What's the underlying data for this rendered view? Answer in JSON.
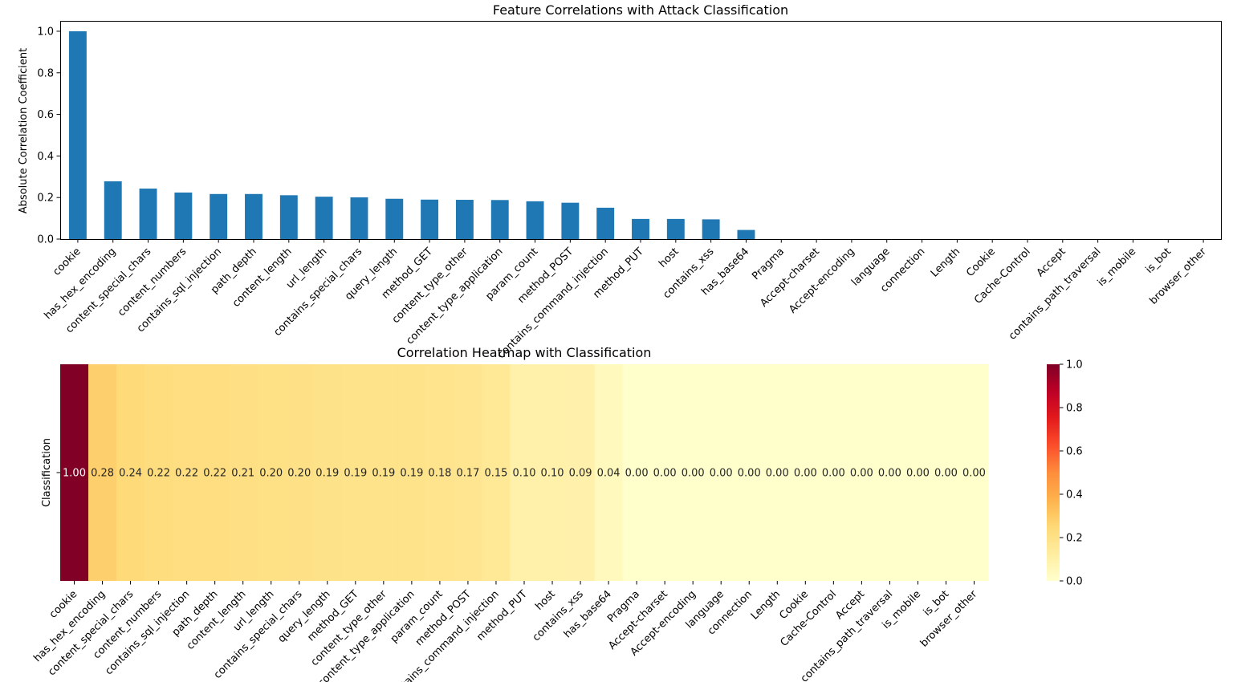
{
  "chart_data": [
    {
      "type": "bar",
      "title": "Feature Correlations with Attack Classification",
      "xlabel": "",
      "ylabel": "Absolute Correlation Coefficient",
      "ylim": [
        0,
        1.05
      ],
      "yticks": [
        "0.0",
        "0.2",
        "0.4",
        "0.6",
        "0.8",
        "1.0"
      ],
      "bar_color": "#1f77b4",
      "grid": false,
      "categories": [
        "cookie",
        "has_hex_encoding",
        "content_special_chars",
        "content_numbers",
        "contains_sql_injection",
        "path_depth",
        "content_length",
        "url_length",
        "contains_special_chars",
        "query_length",
        "method_GET",
        "content_type_other",
        "content_type_application",
        "param_count",
        "method_POST",
        "contains_command_injection",
        "method_PUT",
        "host",
        "contains_xss",
        "has_base64",
        "Pragma",
        "Accept-charset",
        "Accept-encoding",
        "language",
        "connection",
        "Length",
        "Cookie",
        "Cache-Control",
        "Accept",
        "contains_path_traversal",
        "is_mobile",
        "is_bot",
        "browser_other"
      ],
      "values": [
        1.0,
        0.278,
        0.243,
        0.224,
        0.217,
        0.217,
        0.211,
        0.204,
        0.201,
        0.194,
        0.19,
        0.189,
        0.188,
        0.182,
        0.175,
        0.151,
        0.097,
        0.097,
        0.095,
        0.044,
        0,
        0,
        0,
        0,
        0,
        0,
        0,
        0,
        0,
        0,
        0,
        0,
        0
      ]
    },
    {
      "type": "heatmap",
      "title": "Correlation Heatmap with Classification",
      "ylabel": "Classification",
      "colormap": "YlOrRd",
      "colorbar_range": [
        0,
        1
      ],
      "colorbar_ticks": [
        "0.0",
        "0.2",
        "0.4",
        "0.6",
        "0.8",
        "1.0"
      ],
      "categories": [
        "cookie",
        "has_hex_encoding",
        "content_special_chars",
        "content_numbers",
        "contains_sql_injection",
        "path_depth",
        "content_length",
        "url_length",
        "contains_special_chars",
        "query_length",
        "method_GET",
        "content_type_other",
        "content_type_application",
        "param_count",
        "method_POST",
        "contains_command_injection",
        "method_PUT",
        "host",
        "contains_xss",
        "has_base64",
        "Pragma",
        "Accept-charset",
        "Accept-encoding",
        "language",
        "connection",
        "Length",
        "Cookie",
        "Cache-Control",
        "Accept",
        "contains_path_traversal",
        "is_mobile",
        "is_bot",
        "browser_other"
      ],
      "values": [
        1.0,
        0.278,
        0.243,
        0.224,
        0.217,
        0.217,
        0.211,
        0.204,
        0.201,
        0.194,
        0.19,
        0.189,
        0.188,
        0.182,
        0.175,
        0.151,
        0.097,
        0.097,
        0.095,
        0.044,
        0,
        0,
        0,
        0,
        0,
        0,
        0,
        0,
        0,
        0,
        0,
        0,
        0
      ],
      "labels": [
        "1.00",
        "0.28",
        "0.24",
        "0.22",
        "0.22",
        "0.22",
        "0.21",
        "0.20",
        "0.20",
        "0.19",
        "0.19",
        "0.19",
        "0.19",
        "0.18",
        "0.17",
        "0.15",
        "0.10",
        "0.10",
        "0.09",
        "0.04",
        "0.00",
        "0.00",
        "0.00",
        "0.00",
        "0.00",
        "0.00",
        "0.00",
        "0.00",
        "0.00",
        "0.00",
        "0.00",
        "0.00",
        "0.00"
      ]
    }
  ]
}
